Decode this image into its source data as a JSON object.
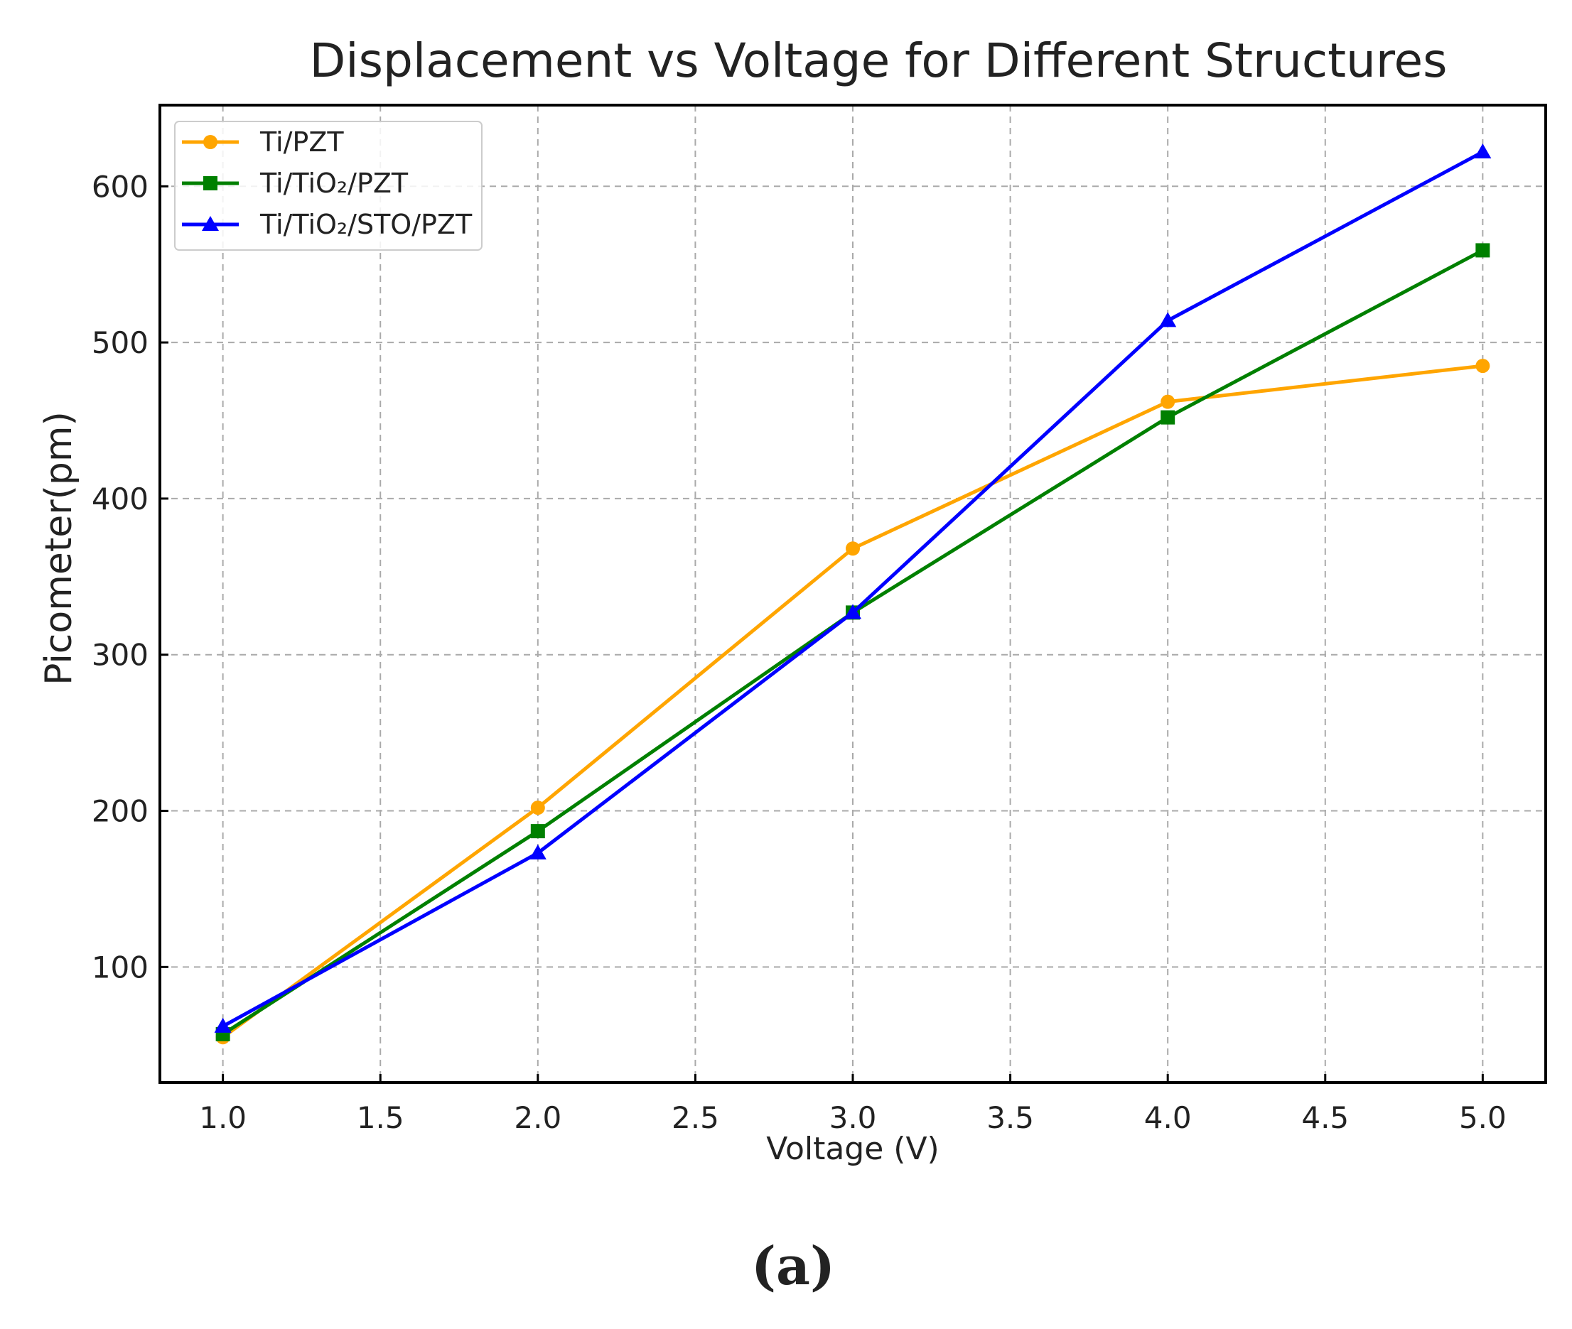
{
  "chart_data": {
    "type": "line",
    "title": "Displacement vs Voltage for Different Structures",
    "xlabel": "Voltage (V)",
    "ylabel": "Picometer(pm)",
    "xlim": [
      0.8,
      5.2
    ],
    "ylim": [
      26,
      652
    ],
    "x_ticks": [
      "1.0",
      "1.5",
      "2.0",
      "2.5",
      "3.0",
      "3.5",
      "4.0",
      "4.5",
      "5.0"
    ],
    "y_ticks": [
      "100",
      "200",
      "300",
      "400",
      "500",
      "600"
    ],
    "grid": true,
    "legend_position": "top-left",
    "x": [
      1.0,
      2.0,
      3.0,
      4.0,
      5.0
    ],
    "series": [
      {
        "name": "Ti/PZT",
        "color": "#FFA500",
        "marker": "circle",
        "values": [
          55,
          202,
          368,
          462,
          485
        ]
      },
      {
        "name": "Ti/TiO₂/PZT",
        "color": "#008000",
        "marker": "square",
        "values": [
          57,
          187,
          327,
          452,
          559
        ]
      },
      {
        "name": "Ti/TiO₂/STO/PZT",
        "color": "#0000FF",
        "marker": "triangle",
        "values": [
          62,
          173,
          327,
          514,
          622
        ]
      }
    ]
  },
  "panel_label": "(a)"
}
